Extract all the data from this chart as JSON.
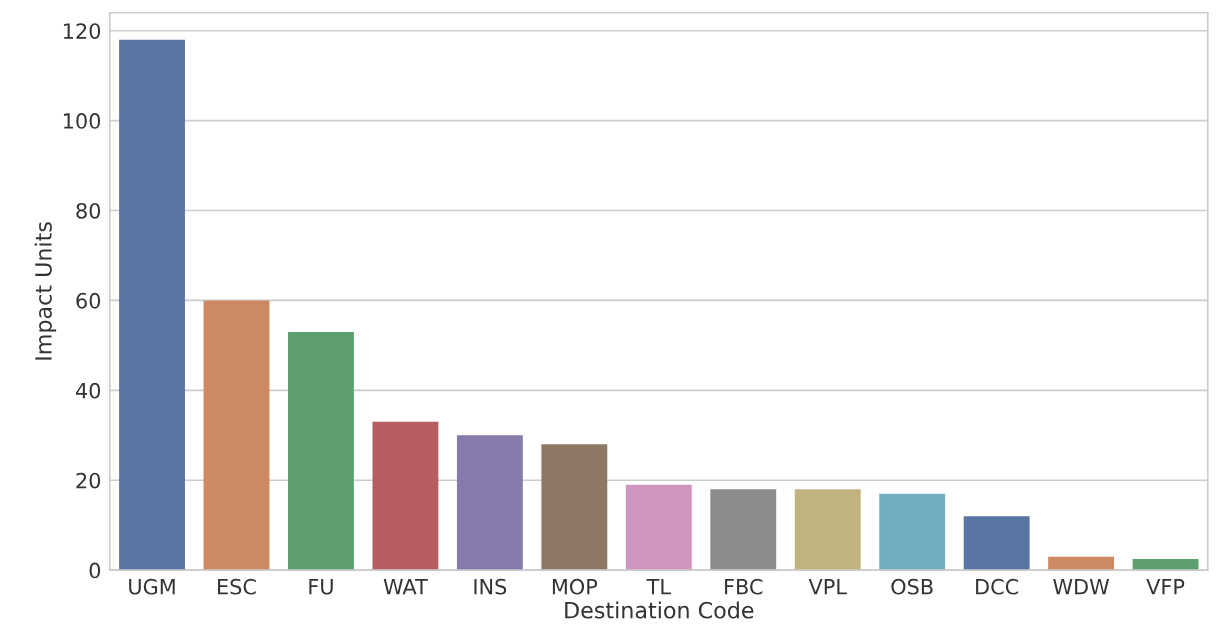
{
  "chart_data": {
    "type": "bar",
    "xlabel": "Destination Code",
    "ylabel": "Impact Units",
    "categories": [
      "UGM",
      "ESC",
      "FU",
      "WAT",
      "INS",
      "MOP",
      "TL",
      "FBC",
      "VPL",
      "OSB",
      "DCC",
      "WDW",
      "VFP"
    ],
    "values": [
      118,
      60,
      53,
      33,
      30,
      28,
      19,
      18,
      18,
      17,
      12,
      3,
      2.5
    ],
    "colors": [
      "#5975a4",
      "#cc8963",
      "#5f9e6e",
      "#b55d60",
      "#857aab",
      "#8d7866",
      "#d095bf",
      "#8c8c8c",
      "#c1b37f",
      "#71aec0",
      "#5975a4",
      "#cc8963",
      "#5f9e6e"
    ],
    "ylim": [
      0,
      124
    ],
    "yticks": [
      0,
      20,
      40,
      60,
      80,
      100,
      120
    ],
    "grid": "y"
  }
}
